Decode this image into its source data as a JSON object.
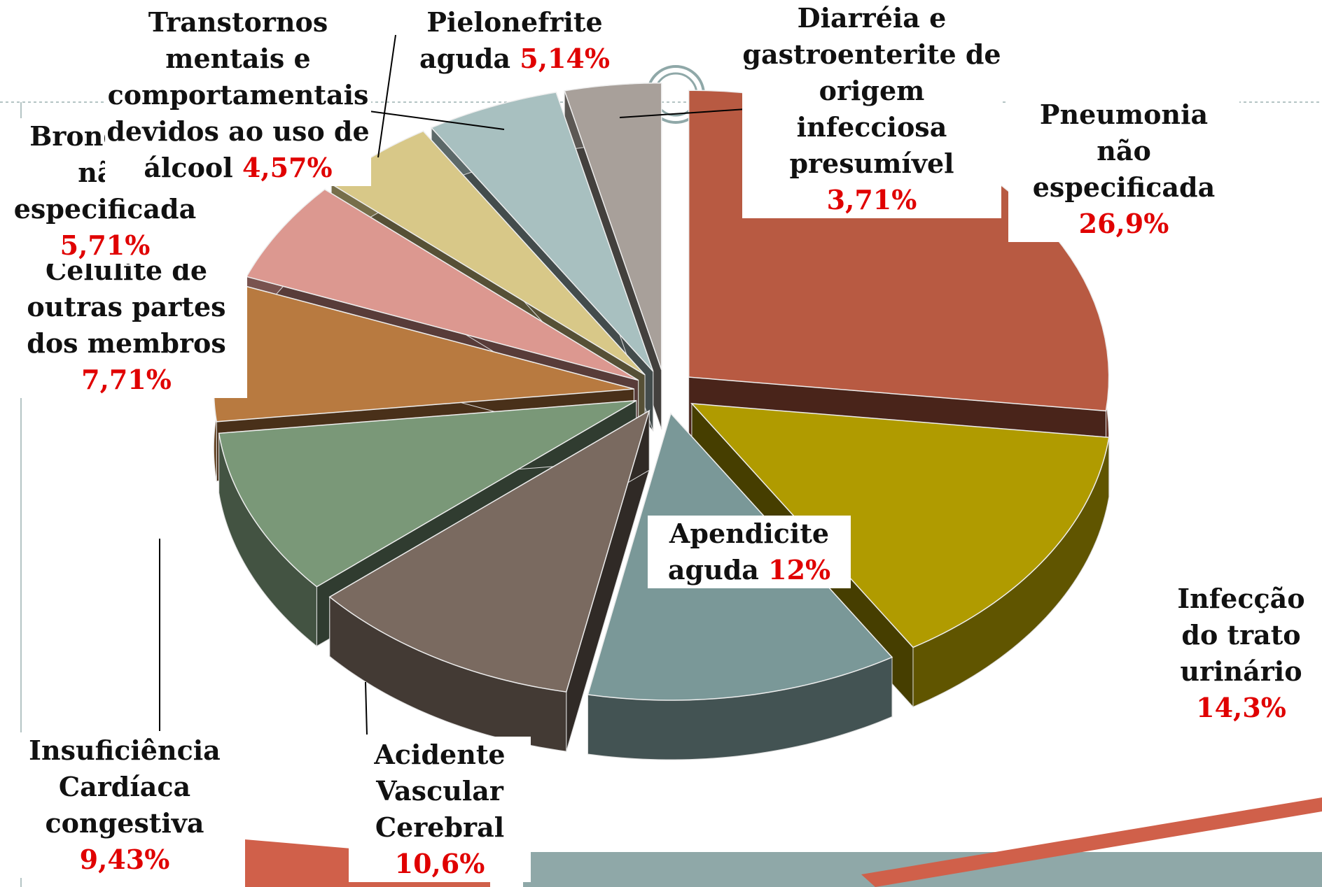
{
  "chart_data": {
    "type": "pie",
    "categories": [
      "Pneumonia não especificada",
      "Infecção do trato urinário",
      "Apendicite aguda",
      "Acidente Vascular Cerebral",
      "Insuficiência Cardíaca congestiva",
      "Celulite de outras partes dos membros",
      "Bronquite não especificada",
      "Transtornos mentais e comportamentais devidos ao uso de álcool",
      "Pielonefrite aguda",
      "Diarréia  e gastroenterite de origem infecciosa presumível"
    ],
    "values": [
      26.9,
      14.3,
      12,
      10.6,
      9.43,
      7.71,
      5.71,
      4.57,
      5.14,
      3.71
    ],
    "value_labels": [
      "26,9%",
      "14,3%",
      "12%",
      "10,6%",
      "9,43%",
      "7,71%",
      "5,71%",
      "4,57%",
      "5,14%",
      "3,71%"
    ],
    "colors": [
      "#b85a42",
      "#b09b00",
      "#7a9898",
      "#7a6a60",
      "#7a9878",
      "#b87a40",
      "#dc9890",
      "#d8c888",
      "#a8c0c0",
      "#a8a09a"
    ]
  }
}
